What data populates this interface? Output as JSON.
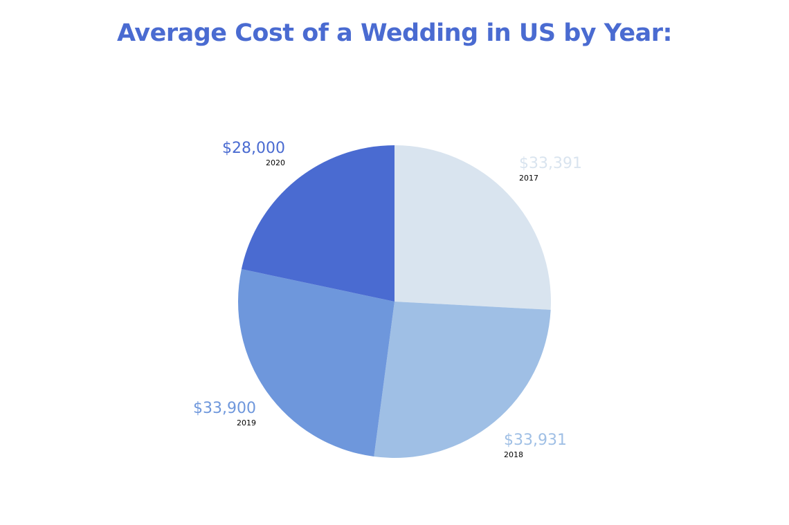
{
  "chart_data": {
    "type": "pie",
    "title": "Average Cost of a Wedding in US by Year:",
    "categories": [
      "2017",
      "2018",
      "2019",
      "2020"
    ],
    "values": [
      33391,
      33931,
      33900,
      28000
    ],
    "value_labels": [
      "$33,391",
      "$33,931",
      "$33,900",
      "$28,000"
    ],
    "colors": [
      "#d9e4ef",
      "#9fbfe5",
      "#6e97dc",
      "#4a6bd1"
    ],
    "start_angle": "12 o'clock, clockwise",
    "legend": "none"
  },
  "labels": {
    "l2017": {
      "value": "$33,391",
      "year": "2017"
    },
    "l2018": {
      "value": "$33,931",
      "year": "2018"
    },
    "l2019": {
      "value": "$33,900",
      "year": "2019"
    },
    "l2020": {
      "value": "$28,000",
      "year": "2020"
    }
  }
}
